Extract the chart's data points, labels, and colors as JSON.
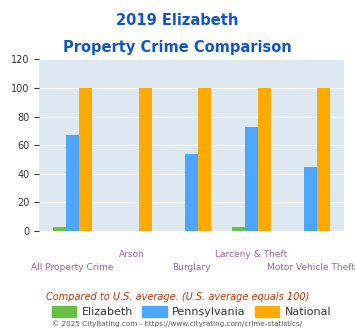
{
  "title_line1": "2019 Elizabeth",
  "title_line2": "Property Crime Comparison",
  "categories": [
    "All Property Crime",
    "Arson",
    "Burglary",
    "Larceny & Theft",
    "Motor Vehicle Theft"
  ],
  "elizabeth": [
    3,
    0,
    0,
    3,
    0
  ],
  "pennsylvania": [
    67,
    0,
    54,
    73,
    45
  ],
  "national": [
    100,
    100,
    100,
    100,
    100
  ],
  "elizabeth_color": "#6abf45",
  "pennsylvania_color": "#4da6ff",
  "national_color": "#ffaa00",
  "ylim": [
    0,
    120
  ],
  "yticks": [
    0,
    20,
    40,
    60,
    80,
    100,
    120
  ],
  "plot_bg": "#dde8f0",
  "title_color": "#1155cc",
  "xlabel_color": "#996699",
  "footer_text": "Compared to U.S. average. (U.S. average equals 100)",
  "footer_color": "#cc3300",
  "credit_text": "© 2025 CityRating.com - https://www.cityrating.com/crime-statistics/",
  "credit_color": "#555555",
  "bar_width": 0.22
}
